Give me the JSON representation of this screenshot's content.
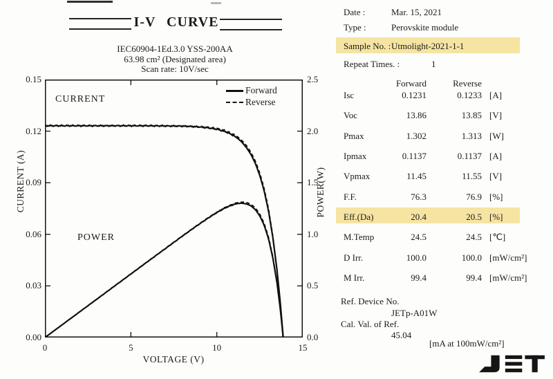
{
  "title_block": {
    "title": "I-V CURVE",
    "line1": "IEC60904-1Ed.3.0 YSS-200AA",
    "line2": "63.98 cm² (Designated area)",
    "line3": "Scan rate: 10V/sec"
  },
  "chart_data": {
    "type": "line",
    "title": "I-V CURVE",
    "xlabel": "VOLTAGE (V)",
    "ylabel_left": "CURRENT (A)",
    "ylabel_right": "POWER(W)",
    "xlim": [
      0,
      15
    ],
    "ylim_left": [
      0,
      0.15
    ],
    "ylim_right": [
      0,
      2.5
    ],
    "x_ticks": [
      "0",
      "5",
      "10",
      "15"
    ],
    "y_left_ticks": [
      "0.15",
      "0.12",
      "0.09",
      "0.06",
      "0.03",
      "0.00"
    ],
    "y_right_ticks": [
      "2.5",
      "2.0",
      "1.5",
      "1.0",
      "0.5",
      "0.0"
    ],
    "grid": false,
    "legend_position": "upper-right-inside",
    "legend": [
      "Forward",
      "Reverse"
    ],
    "inplot_labels": [
      "CURRENT",
      "POWER"
    ],
    "power_relation": "P = V × I (power curves plotted on right axis)",
    "series": [
      {
        "name": "Forward",
        "style": "solid",
        "points_iv": [
          [
            0,
            0.1231
          ],
          [
            1,
            0.1231
          ],
          [
            2,
            0.1231
          ],
          [
            3,
            0.1231
          ],
          [
            4,
            0.1231
          ],
          [
            5,
            0.1231
          ],
          [
            6,
            0.1231
          ],
          [
            7,
            0.123
          ],
          [
            8,
            0.1229
          ],
          [
            8.5,
            0.1227
          ],
          [
            9,
            0.1224
          ],
          [
            9.5,
            0.1219
          ],
          [
            10,
            0.1211
          ],
          [
            10.5,
            0.1197
          ],
          [
            11,
            0.1173
          ],
          [
            11.25,
            0.1155
          ],
          [
            11.45,
            0.1137
          ],
          [
            11.75,
            0.1101
          ],
          [
            12,
            0.1062
          ],
          [
            12.25,
            0.101
          ],
          [
            12.5,
            0.0943
          ],
          [
            12.75,
            0.0855
          ],
          [
            13,
            0.0739
          ],
          [
            13.25,
            0.0589
          ],
          [
            13.5,
            0.0393
          ],
          [
            13.7,
            0.0194
          ],
          [
            13.86,
            0
          ]
        ]
      },
      {
        "name": "Reverse",
        "style": "dashed",
        "points_iv": [
          [
            0,
            0.1233
          ],
          [
            1,
            0.1233
          ],
          [
            2,
            0.1233
          ],
          [
            3,
            0.1233
          ],
          [
            4,
            0.1233
          ],
          [
            5,
            0.1233
          ],
          [
            6,
            0.1233
          ],
          [
            7,
            0.1232
          ],
          [
            8,
            0.1231
          ],
          [
            8.5,
            0.1229
          ],
          [
            9,
            0.1227
          ],
          [
            9.5,
            0.1223
          ],
          [
            10,
            0.1216
          ],
          [
            10.5,
            0.1203
          ],
          [
            11,
            0.1181
          ],
          [
            11.25,
            0.1164
          ],
          [
            11.55,
            0.1137
          ],
          [
            11.75,
            0.1113
          ],
          [
            12,
            0.1075
          ],
          [
            12.25,
            0.1024
          ],
          [
            12.5,
            0.0957
          ],
          [
            12.75,
            0.0869
          ],
          [
            13,
            0.0753
          ],
          [
            13.25,
            0.0599
          ],
          [
            13.5,
            0.0397
          ],
          [
            13.7,
            0.0189
          ],
          [
            13.85,
            0
          ]
        ]
      }
    ]
  },
  "panel": {
    "highlight_color": "#f5e4a2",
    "info_rows": [
      {
        "label": "Date :",
        "value": "Mar. 15, 2021",
        "highlight": false
      },
      {
        "label": "Type :",
        "value": "Perovskite module",
        "highlight": false
      },
      {
        "label": "Sample No. :",
        "value": "Utmolight-2021-1-1",
        "highlight": true
      },
      {
        "label": "Repeat Times. :",
        "value": "1",
        "highlight": false
      }
    ],
    "col_headers": [
      "Forward",
      "Reverse"
    ],
    "params": [
      {
        "name": "Isc",
        "forward": "0.1231",
        "reverse": "0.1233",
        "unit": "[A]",
        "highlight": false
      },
      {
        "name": "Voc",
        "forward": "13.86",
        "reverse": "13.85",
        "unit": "[V]",
        "highlight": false
      },
      {
        "name": "Pmax",
        "forward": "1.302",
        "reverse": "1.313",
        "unit": "[W]",
        "highlight": false
      },
      {
        "name": "Ipmax",
        "forward": "0.1137",
        "reverse": "0.1137",
        "unit": "[A]",
        "highlight": false
      },
      {
        "name": "Vpmax",
        "forward": "11.45",
        "reverse": "11.55",
        "unit": "[V]",
        "highlight": false
      },
      {
        "name": "F.F.",
        "forward": "76.3",
        "reverse": "76.9",
        "unit": "[%]",
        "highlight": false
      },
      {
        "name": "Eff.(Da)",
        "forward": "20.4",
        "reverse": "20.5",
        "unit": "[%]",
        "highlight": true
      },
      {
        "name": "M.Temp",
        "forward": "24.5",
        "reverse": "24.5",
        "unit": "[℃]",
        "highlight": false
      },
      {
        "name": "D Irr.",
        "forward": "100.0",
        "reverse": "100.0",
        "unit": "[mW/cm²]",
        "highlight": false
      },
      {
        "name": "M Irr.",
        "forward": "99.4",
        "reverse": "99.4",
        "unit": "[mW/cm²]",
        "highlight": false
      }
    ],
    "ref": {
      "label1": "Ref. Device No.",
      "value1": "JETp-A01W",
      "label2": "Cal. Val. of Ref.",
      "value2": "45.04",
      "unit_note": "[mA at 100mW/cm²]"
    },
    "logo_text": "JET"
  }
}
